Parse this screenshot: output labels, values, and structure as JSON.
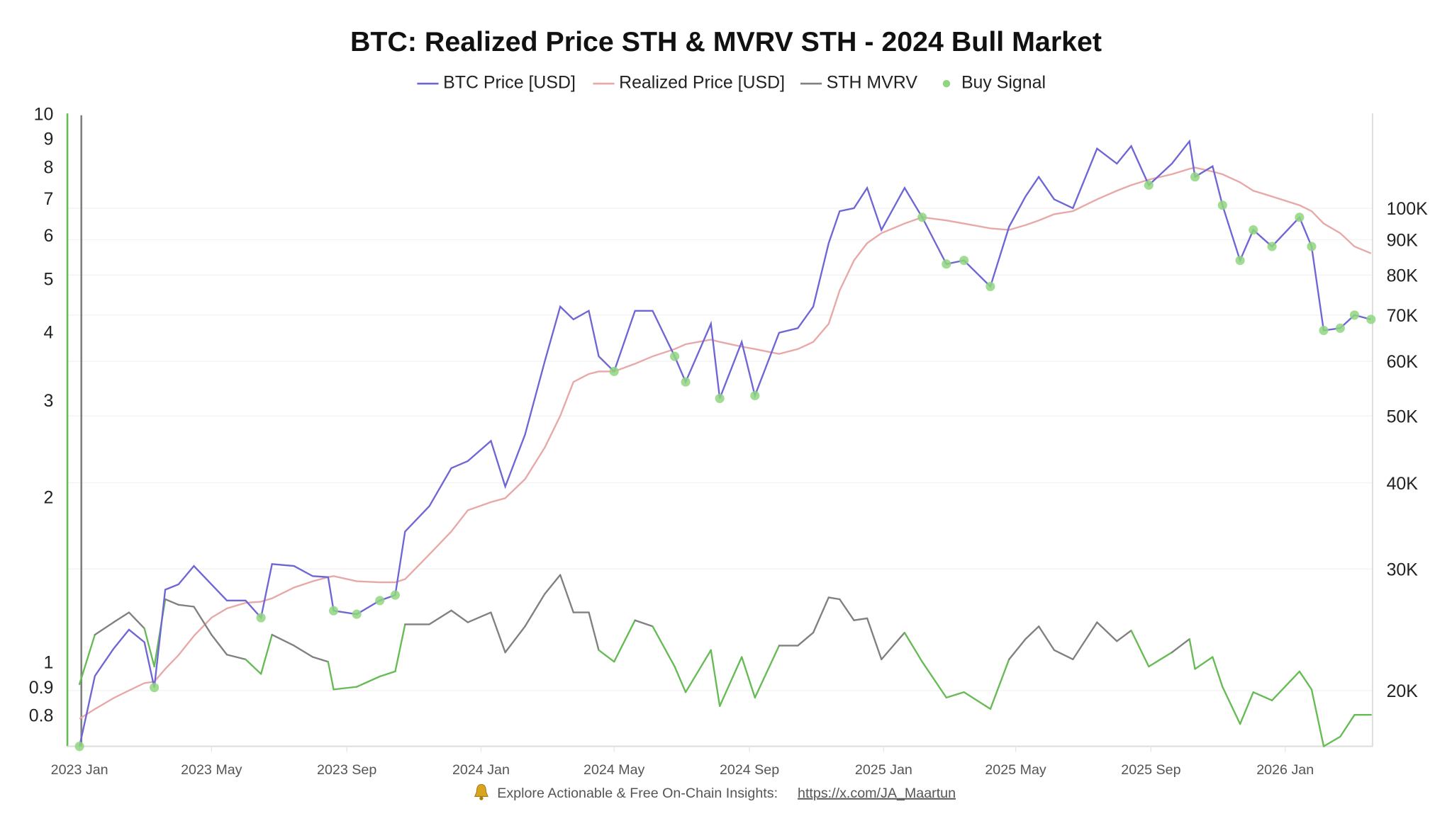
{
  "chart_data": {
    "type": "line",
    "title": "BTC: Realized Price STH & MVRV STH - 2024 Bull Market",
    "legend": {
      "placement": "top",
      "items": [
        {
          "label": "BTC Price [USD]",
          "color": "#6f66d6",
          "kind": "line"
        },
        {
          "label": "Realized Price [USD]",
          "color": "#e8a8a8",
          "kind": "line"
        },
        {
          "label": "STH MVRV",
          "color": "#808080",
          "kind": "line"
        },
        {
          "label": "Buy Signal",
          "color": "#8fd67f",
          "kind": "dot"
        }
      ]
    },
    "left_axis": {
      "scale": "log",
      "range": [
        0.7,
        10
      ],
      "ticks": [
        "10",
        "9",
        "8",
        "7",
        "6",
        "5",
        "4",
        "3",
        "2",
        "1",
        "0.9",
        "0.8"
      ],
      "tick_values": [
        10,
        9,
        8,
        7,
        6,
        5,
        4,
        3,
        2,
        1,
        0.9,
        0.8
      ]
    },
    "right_axis": {
      "scale": "log",
      "range": [
        16600,
        137000
      ],
      "ticks": [
        "100K",
        "90K",
        "80K",
        "70K",
        "60K",
        "50K",
        "40K",
        "30K",
        "20K"
      ],
      "tick_values": [
        100000,
        90000,
        80000,
        70000,
        60000,
        50000,
        40000,
        30000,
        20000
      ]
    },
    "x_axis": {
      "type": "date",
      "range": [
        "2022-12-21",
        "2026-03-22"
      ],
      "ticks": [
        "2023 Jan",
        "2023 May",
        "2023 Sep",
        "2024 Jan",
        "2024 May",
        "2024 Sep",
        "2025 Jan",
        "2025 May",
        "2025 Sep",
        "2026 Jan"
      ],
      "tick_dates": [
        "2023-01-01",
        "2023-05-01",
        "2023-09-01",
        "2024-01-01",
        "2024-05-01",
        "2024-09-01",
        "2025-01-01",
        "2025-05-01",
        "2025-09-01",
        "2026-01-01"
      ]
    },
    "grid": {
      "horizontal": true,
      "vertical": false
    },
    "colors": {
      "price": "#6f66d6",
      "realized": "#e8a8a8",
      "mvrv": "#808080",
      "mvrv_signal": "#66bb55",
      "buy": "#8fd67f",
      "left_axis_line": "#66bb55"
    },
    "fields": [
      "date",
      "btc_price",
      "realized_price",
      "sth_mvrv",
      "buy_signal"
    ],
    "points": [
      [
        "2023-01-01",
        16600,
        18200,
        0.91,
        1
      ],
      [
        "2023-01-15",
        21000,
        18800,
        1.12,
        0
      ],
      [
        "2023-02-01",
        23000,
        19500,
        1.18,
        0
      ],
      [
        "2023-02-15",
        24500,
        20000,
        1.23,
        0
      ],
      [
        "2023-03-01",
        23500,
        20500,
        1.15,
        0
      ],
      [
        "2023-03-10",
        20200,
        20600,
        0.98,
        1
      ],
      [
        "2023-03-20",
        28000,
        21500,
        1.3,
        0
      ],
      [
        "2023-04-01",
        28500,
        22500,
        1.27,
        0
      ],
      [
        "2023-04-15",
        30300,
        24000,
        1.26,
        0
      ],
      [
        "2023-05-01",
        28500,
        25500,
        1.12,
        0
      ],
      [
        "2023-05-15",
        27000,
        26300,
        1.03,
        0
      ],
      [
        "2023-06-01",
        27000,
        26800,
        1.01,
        0
      ],
      [
        "2023-06-15",
        25500,
        26900,
        0.95,
        1
      ],
      [
        "2023-06-25",
        30500,
        27200,
        1.12,
        0
      ],
      [
        "2023-07-15",
        30300,
        28200,
        1.07,
        0
      ],
      [
        "2023-08-01",
        29300,
        28800,
        1.02,
        0
      ],
      [
        "2023-08-15",
        29200,
        29200,
        1.0,
        0
      ],
      [
        "2023-08-20",
        26100,
        29300,
        0.89,
        1
      ],
      [
        "2023-09-10",
        25800,
        28800,
        0.9,
        1
      ],
      [
        "2023-10-01",
        27000,
        28700,
        0.94,
        1
      ],
      [
        "2023-10-15",
        27500,
        28700,
        0.96,
        1
      ],
      [
        "2023-10-24",
        34000,
        29000,
        1.17,
        0
      ],
      [
        "2023-11-15",
        37000,
        31500,
        1.17,
        0
      ],
      [
        "2023-12-05",
        42000,
        34000,
        1.24,
        0
      ],
      [
        "2023-12-20",
        43000,
        36500,
        1.18,
        0
      ],
      [
        "2024-01-10",
        46000,
        37500,
        1.23,
        0
      ],
      [
        "2024-01-23",
        39500,
        38000,
        1.04,
        0
      ],
      [
        "2024-02-10",
        47000,
        40500,
        1.16,
        0
      ],
      [
        "2024-02-28",
        60000,
        45000,
        1.33,
        0
      ],
      [
        "2024-03-13",
        72000,
        50000,
        1.44,
        0
      ],
      [
        "2024-03-25",
        69000,
        56000,
        1.23,
        0
      ],
      [
        "2024-04-08",
        71000,
        57500,
        1.23,
        0
      ],
      [
        "2024-04-17",
        61000,
        58000,
        1.05,
        0
      ],
      [
        "2024-05-01",
        58000,
        58000,
        1.0,
        1
      ],
      [
        "2024-05-20",
        71000,
        59500,
        1.19,
        0
      ],
      [
        "2024-06-05",
        71000,
        61000,
        1.16,
        0
      ],
      [
        "2024-06-25",
        61000,
        62500,
        0.98,
        1
      ],
      [
        "2024-07-05",
        56000,
        63500,
        0.88,
        1
      ],
      [
        "2024-07-28",
        68000,
        64500,
        1.05,
        0
      ],
      [
        "2024-08-05",
        53000,
        64000,
        0.83,
        1
      ],
      [
        "2024-08-25",
        64000,
        63000,
        1.02,
        0
      ],
      [
        "2024-09-06",
        53500,
        62500,
        0.86,
        1
      ],
      [
        "2024-09-28",
        66000,
        61500,
        1.07,
        0
      ],
      [
        "2024-10-15",
        67000,
        62500,
        1.07,
        0
      ],
      [
        "2024-10-29",
        72000,
        64000,
        1.13,
        0
      ],
      [
        "2024-11-12",
        89000,
        68000,
        1.31,
        0
      ],
      [
        "2024-11-22",
        99000,
        76000,
        1.3,
        0
      ],
      [
        "2024-12-05",
        100000,
        84000,
        1.19,
        0
      ],
      [
        "2024-12-17",
        107000,
        89000,
        1.2,
        0
      ],
      [
        "2024-12-30",
        93000,
        92000,
        1.01,
        0
      ],
      [
        "2025-01-20",
        107000,
        95000,
        1.13,
        0
      ],
      [
        "2025-02-05",
        97000,
        97000,
        1.0,
        1
      ],
      [
        "2025-02-27",
        83000,
        96000,
        0.86,
        1
      ],
      [
        "2025-03-15",
        84000,
        95000,
        0.88,
        1
      ],
      [
        "2025-04-08",
        77000,
        93500,
        0.82,
        1
      ],
      [
        "2025-04-25",
        94000,
        93000,
        1.01,
        0
      ],
      [
        "2025-05-10",
        104000,
        94500,
        1.1,
        0
      ],
      [
        "2025-05-22",
        111000,
        96000,
        1.16,
        0
      ],
      [
        "2025-06-05",
        103000,
        98000,
        1.05,
        0
      ],
      [
        "2025-06-22",
        100000,
        99000,
        1.01,
        0
      ],
      [
        "2025-07-14",
        122000,
        103000,
        1.18,
        0
      ],
      [
        "2025-08-01",
        116000,
        106000,
        1.09,
        0
      ],
      [
        "2025-08-14",
        123000,
        108000,
        1.14,
        0
      ],
      [
        "2025-08-30",
        108000,
        110000,
        0.98,
        1
      ],
      [
        "2025-09-20",
        116000,
        112000,
        1.04,
        0
      ],
      [
        "2025-10-06",
        125000,
        114000,
        1.1,
        0
      ],
      [
        "2025-10-11",
        111000,
        114500,
        0.97,
        1
      ],
      [
        "2025-10-27",
        115000,
        113000,
        1.02,
        0
      ],
      [
        "2025-11-05",
        101000,
        112000,
        0.9,
        1
      ],
      [
        "2025-11-21",
        84000,
        109000,
        0.77,
        1
      ],
      [
        "2025-12-03",
        93000,
        106000,
        0.88,
        1
      ],
      [
        "2025-12-20",
        88000,
        104000,
        0.85,
        1
      ],
      [
        "2026-01-14",
        97000,
        101000,
        0.96,
        1
      ],
      [
        "2026-01-25",
        88000,
        99000,
        0.89,
        1
      ],
      [
        "2026-02-05",
        66500,
        95000,
        0.7,
        1
      ],
      [
        "2026-02-20",
        67000,
        92000,
        0.73,
        1
      ],
      [
        "2026-03-05",
        70000,
        88000,
        0.8,
        1
      ],
      [
        "2026-03-20",
        69000,
        86000,
        0.8,
        1
      ]
    ]
  },
  "footer": {
    "icon": "bell-icon",
    "text": "Explore Actionable & Free On-Chain Insights:",
    "link": "https://x.com/JA_Maartun"
  }
}
